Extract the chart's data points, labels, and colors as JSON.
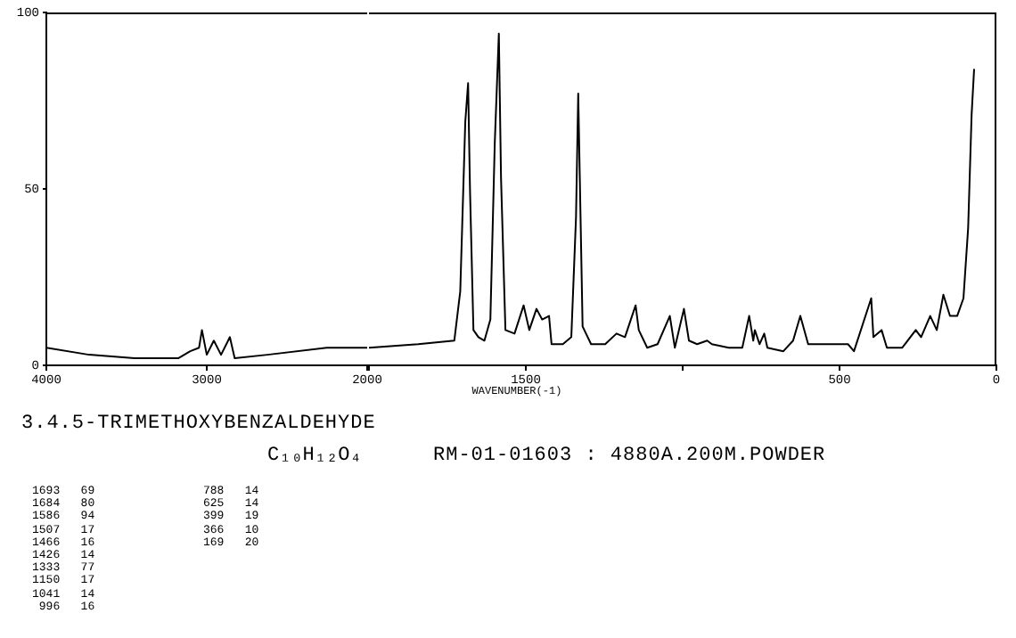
{
  "chart_data": [
    {
      "type": "line",
      "title": "3.4.5-TRIMETHOXYBENZALDEHYDE",
      "subtitle": "C₁₀H₁₂O₄",
      "annotations": [
        "RM-01-01603 : 4880A.200M.POWDER",
        "1693   69",
        "1684   80",
        "1586   94",
        "1507   17",
        "1466   16",
        "1426   14",
        "1333   77",
        "1150   17",
        "1041   14",
        " 996   16",
        "788   14",
        "625   14",
        "399   19",
        "366   10",
        "169   20"
      ],
      "x": [
        4000,
        3733,
        3450,
        3178,
        3103,
        3048,
        3030,
        3000,
        2956,
        2911,
        2856,
        2826,
        2622,
        2252,
        2011,
        2000
      ],
      "series": [
        {
          "color": "#000000",
          "values": [
            5,
            3,
            2,
            2,
            4,
            5,
            10,
            3,
            7,
            3,
            8,
            2,
            3,
            5,
            5,
            5
          ]
        }
      ],
      "xlim": [
        4000,
        2000
      ],
      "xticks": [
        4000,
        3000,
        2000
      ],
      "ylim": [
        0,
        100
      ],
      "yticks": [
        0,
        50,
        100
      ],
      "marker": "none",
      "legend": false
    },
    {
      "type": "line",
      "xlabel": "WAVENUMBER(-1)",
      "x": [
        2000,
        1843,
        1728,
        1709,
        1693,
        1684,
        1678,
        1667,
        1651,
        1632,
        1613,
        1599,
        1586,
        1579,
        1565,
        1536,
        1507,
        1489,
        1466,
        1448,
        1426,
        1418,
        1382,
        1355,
        1340,
        1333,
        1319,
        1292,
        1247,
        1211,
        1184,
        1150,
        1140,
        1113,
        1080,
        1041,
        1025,
        996,
        980,
        954,
        922,
        907,
        853,
        810,
        788,
        775,
        770,
        755,
        740,
        730,
        679,
        648,
        625,
        600,
        521,
        473,
        454,
        399,
        392,
        366,
        349,
        300,
        257,
        240,
        211,
        190,
        169,
        148,
        125,
        105,
        90,
        79,
        71
      ],
      "series": [
        {
          "color": "#000000",
          "values": [
            5,
            6,
            7,
            21,
            69,
            80,
            50,
            10,
            8,
            7,
            13,
            63,
            94,
            53,
            10,
            9,
            17,
            10,
            16,
            13,
            14,
            6,
            6,
            8,
            42,
            77,
            11,
            6,
            6,
            9,
            8,
            17,
            10,
            5,
            6,
            14,
            5,
            16,
            7,
            6,
            7,
            6,
            5,
            5,
            14,
            7,
            10,
            6,
            9,
            5,
            4,
            7,
            14,
            6,
            6,
            6,
            4,
            19,
            8,
            10,
            5,
            5,
            10,
            8,
            14,
            10,
            20,
            14,
            14,
            19,
            39,
            71,
            84
          ]
        }
      ],
      "xlim": [
        2000,
        0
      ],
      "xticks": [
        {
          "value": 2000,
          "label": null
        },
        1500,
        {
          "value": 1000,
          "label": null
        },
        500,
        0
      ],
      "ylim": [
        0,
        100
      ],
      "yticks": [
        0,
        50,
        100
      ],
      "tick_labels": "x",
      "marker": "none",
      "legend": false
    }
  ]
}
